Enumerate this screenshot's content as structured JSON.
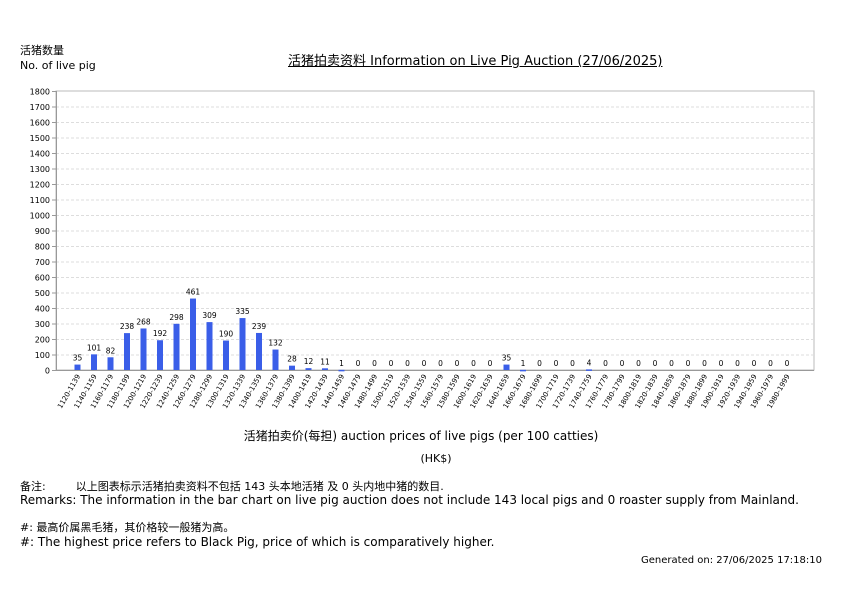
{
  "header": {
    "y_axis_label_cn": "活猪数量",
    "y_axis_label_en": "No. of live pig",
    "title": "活猪拍卖资料 Information on Live Pig Auction (27/06/2025)"
  },
  "footer": {
    "x_axis_label": "活猪拍卖价(每担) auction prices of live pigs (per 100 catties)",
    "x_axis_unit": "(HK$)",
    "remarks_cn_label": "备注:",
    "remarks_cn": "以上图表标示活猪拍卖资料不包括 143 头本地活猪 及 0 头内地中猪的数目.",
    "remarks_en": "Remarks: The information in the bar chart on live pig auction does not include 143 local pigs and 0 roaster supply from Mainland.",
    "note_cn": "#: 最高价属黑毛猪，其价格较一般猪为高。",
    "note_en": "#: The highest price refers to Black Pig, price of which is comparatively higher.",
    "generated": "Generated on: 27/06/2025 17:18:10"
  },
  "colors": {
    "bar": "#3a5ee8",
    "axis": "#999999",
    "grid": "#dddddd"
  },
  "chart_data": {
    "type": "bar",
    "title": "活猪拍卖资料 Information on Live Pig Auction (27/06/2025)",
    "xlabel": "活猪拍卖价(每担) auction prices of live pigs (per 100 catties) (HK$)",
    "ylabel": "活猪数量 No. of live pig",
    "ylim": [
      0,
      1800
    ],
    "yticks": [
      0,
      100,
      200,
      300,
      400,
      500,
      600,
      700,
      800,
      900,
      1000,
      1100,
      1200,
      1300,
      1400,
      1500,
      1600,
      1700,
      1800
    ],
    "grid": true,
    "legend": null,
    "categories": [
      "1120-1139",
      "1140-1159",
      "1160-1179",
      "1180-1199",
      "1200-1219",
      "1220-1239",
      "1240-1259",
      "1260-1279",
      "1280-1299",
      "1300-1319",
      "1320-1339",
      "1340-1359",
      "1360-1379",
      "1380-1399",
      "1400-1419",
      "1420-1439",
      "1440-1459",
      "1460-1479",
      "1480-1499",
      "1500-1519",
      "1520-1539",
      "1540-1559",
      "1560-1579",
      "1580-1599",
      "1600-1619",
      "1620-1639",
      "1640-1659",
      "1660-1679",
      "1680-1699",
      "1700-1719",
      "1720-1739",
      "1740-1759",
      "1760-1779",
      "1780-1799",
      "1800-1819",
      "1820-1839",
      "1840-1859",
      "1860-1879",
      "1880-1899",
      "1900-1919",
      "1920-1939",
      "1940-1959",
      "1960-1979",
      "1980-1999"
    ],
    "values": [
      35,
      101,
      82,
      238,
      268,
      192,
      298,
      461,
      309,
      190,
      335,
      239,
      132,
      28,
      12,
      11,
      1,
      0,
      0,
      0,
      0,
      0,
      0,
      0,
      0,
      0,
      35,
      1,
      0,
      0,
      0,
      4,
      0,
      0,
      0,
      0,
      0,
      0,
      0,
      0,
      0,
      0,
      0,
      0
    ]
  }
}
